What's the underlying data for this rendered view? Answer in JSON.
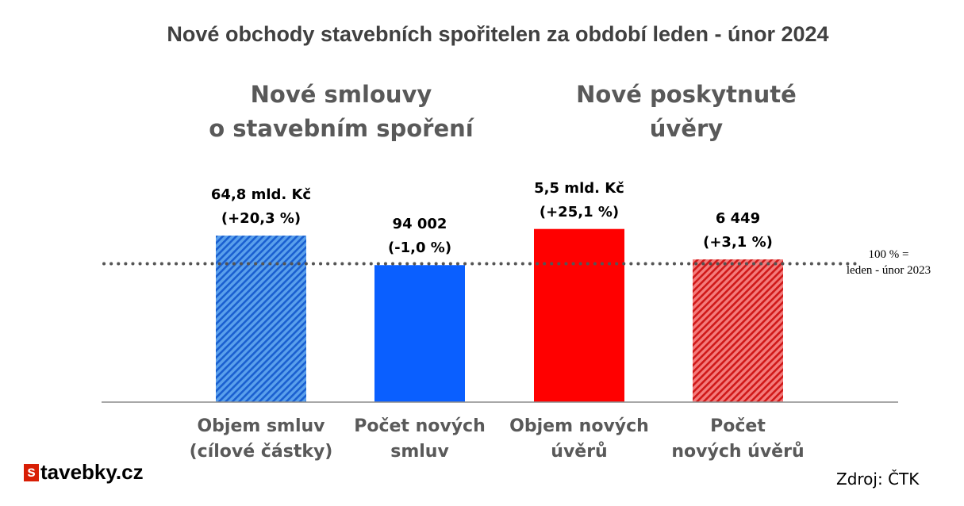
{
  "title": "Nové obchody stavebních spořitelen za období leden - únor 2024",
  "groups": [
    {
      "line1": "Nové smlouvy",
      "line2": "o stavebním spoření"
    },
    {
      "line1": "Nové poskytnuté",
      "line2": "úvěry"
    }
  ],
  "chart_data": {
    "type": "bar",
    "unit": "% of leden - únor 2023",
    "categories": [
      {
        "line1": "Objem smluv",
        "line2": "(cílové částky)"
      },
      {
        "line1": "Počet  nových",
        "line2": "smluv"
      },
      {
        "line1": "Objem nových",
        "line2": "úvěrů"
      },
      {
        "line1": "Počet",
        "line2": "nových úvěrů"
      }
    ],
    "values": [
      120.3,
      99.0,
      125.1,
      103.1
    ],
    "data_labels": [
      {
        "line1": "64,8 mld. Kč",
        "line2": "(+20,3 %)"
      },
      {
        "line1": "94 002",
        "line2": "(-1,0 %)"
      },
      {
        "line1": "5,5 mld. Kč",
        "line2": "(+25,1 %)"
      },
      {
        "line1": "6 449",
        "line2": "(+3,1 %)"
      }
    ],
    "colors": [
      "#2f7fe0",
      "#0a5fff",
      "#ff0000",
      "#e03030"
    ],
    "hatched": [
      true,
      false,
      false,
      true
    ],
    "reference_line": {
      "value": 100,
      "line1": "100 % =",
      "line2": "leden - únor 2023"
    },
    "ylim": [
      0,
      130
    ],
    "grid": false
  },
  "logo": {
    "badge": "s",
    "text": "tavebky.cz"
  },
  "source": "Zdroj: ČTK"
}
